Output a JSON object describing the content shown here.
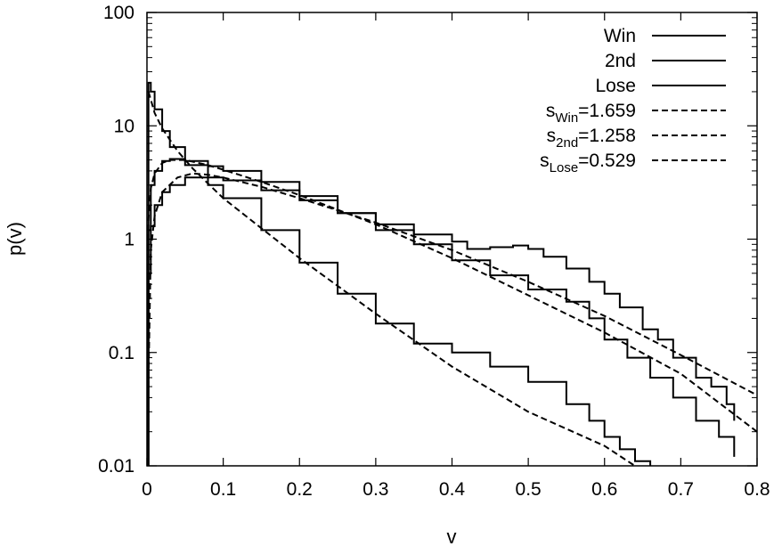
{
  "chart_data": {
    "type": "line",
    "xlabel": "v",
    "ylabel": "p(v)",
    "xlim": [
      0,
      0.8
    ],
    "ylim": [
      0.01,
      100
    ],
    "yscale": "log",
    "grid": false,
    "legend_position": "top-right",
    "xticks": [
      "0",
      "0.1",
      "0.2",
      "0.3",
      "0.4",
      "0.5",
      "0.6",
      "0.7",
      "0.8"
    ],
    "yticks": [
      "0.01",
      "0.1",
      "1",
      "10",
      "100"
    ],
    "series": [
      {
        "name": "Win",
        "style": "solid-step",
        "x": [
          0.002,
          0.005,
          0.01,
          0.02,
          0.03,
          0.05,
          0.08,
          0.1,
          0.15,
          0.2,
          0.25,
          0.3,
          0.35,
          0.4,
          0.42,
          0.45,
          0.48,
          0.5,
          0.52,
          0.55,
          0.58,
          0.6,
          0.62,
          0.65,
          0.67,
          0.69,
          0.72,
          0.74,
          0.76,
          0.77
        ],
        "y": [
          0.5,
          1.3,
          2.0,
          2.6,
          3.0,
          3.5,
          3.5,
          3.3,
          2.7,
          2.2,
          1.7,
          1.35,
          1.1,
          0.95,
          0.82,
          0.85,
          0.88,
          0.82,
          0.7,
          0.55,
          0.42,
          0.33,
          0.25,
          0.16,
          0.13,
          0.09,
          0.06,
          0.05,
          0.035,
          0.025
        ]
      },
      {
        "name": "2nd",
        "style": "solid-step",
        "x": [
          0.002,
          0.005,
          0.01,
          0.02,
          0.03,
          0.05,
          0.08,
          0.1,
          0.15,
          0.2,
          0.25,
          0.3,
          0.35,
          0.4,
          0.45,
          0.5,
          0.55,
          0.58,
          0.6,
          0.63,
          0.66,
          0.69,
          0.72,
          0.75,
          0.77
        ],
        "y": [
          1.2,
          3.0,
          4.0,
          4.9,
          5.1,
          4.9,
          4.4,
          4.0,
          3.2,
          2.4,
          1.7,
          1.2,
          0.9,
          0.65,
          0.48,
          0.36,
          0.28,
          0.2,
          0.13,
          0.09,
          0.06,
          0.04,
          0.025,
          0.018,
          0.012
        ]
      },
      {
        "name": "Lose",
        "style": "solid-step",
        "x": [
          0.002,
          0.005,
          0.01,
          0.02,
          0.03,
          0.05,
          0.08,
          0.1,
          0.15,
          0.2,
          0.25,
          0.3,
          0.35,
          0.4,
          0.45,
          0.5,
          0.55,
          0.58,
          0.6,
          0.62,
          0.64,
          0.66
        ],
        "y": [
          24,
          20,
          14,
          9,
          6.5,
          4.5,
          3.0,
          2.3,
          1.2,
          0.62,
          0.33,
          0.18,
          0.12,
          0.1,
          0.075,
          0.055,
          0.035,
          0.025,
          0.018,
          0.014,
          0.011,
          0.01
        ]
      },
      {
        "name": "s_Win=1.659",
        "style": "dashed",
        "x": [
          0.0,
          0.005,
          0.01,
          0.02,
          0.04,
          0.06,
          0.08,
          0.1,
          0.15,
          0.2,
          0.3,
          0.4,
          0.5,
          0.6,
          0.7,
          0.8
        ],
        "y": [
          0.01,
          0.8,
          1.6,
          2.6,
          3.5,
          3.8,
          3.7,
          3.5,
          2.9,
          2.3,
          1.4,
          0.8,
          0.42,
          0.21,
          0.095,
          0.042
        ]
      },
      {
        "name": "s_2nd=1.258",
        "style": "dashed",
        "x": [
          0.0,
          0.002,
          0.005,
          0.01,
          0.02,
          0.03,
          0.05,
          0.08,
          0.1,
          0.15,
          0.2,
          0.3,
          0.4,
          0.5,
          0.6,
          0.7,
          0.8
        ],
        "y": [
          0.01,
          1.5,
          2.8,
          3.8,
          4.7,
          5.0,
          5.0,
          4.5,
          4.1,
          3.2,
          2.45,
          1.35,
          0.68,
          0.32,
          0.15,
          0.065,
          0.02
        ]
      },
      {
        "name": "s_Lose=0.529",
        "style": "dashed",
        "x": [
          0.002,
          0.005,
          0.01,
          0.02,
          0.04,
          0.06,
          0.08,
          0.1,
          0.15,
          0.2,
          0.3,
          0.4,
          0.5,
          0.6,
          0.65,
          0.7
        ],
        "y": [
          20,
          17,
          13,
          9.5,
          6.0,
          4.2,
          3.1,
          2.3,
          1.25,
          0.68,
          0.22,
          0.075,
          0.03,
          0.015,
          0.009,
          0.006
        ]
      }
    ]
  },
  "legend": [
    {
      "main": "Win",
      "sub": "",
      "suffix": "",
      "style": "solid"
    },
    {
      "main": "2nd",
      "sub": "",
      "suffix": "",
      "style": "solid"
    },
    {
      "main": "Lose",
      "sub": "",
      "suffix": "",
      "style": "solid"
    },
    {
      "main": "s",
      "sub": "Win",
      "suffix": "=1.659",
      "style": "dashed"
    },
    {
      "main": "s",
      "sub": "2nd",
      "suffix": "=1.258",
      "style": "dashed"
    },
    {
      "main": "s",
      "sub": "Lose",
      "suffix": "=0.529",
      "style": "dashed"
    }
  ]
}
